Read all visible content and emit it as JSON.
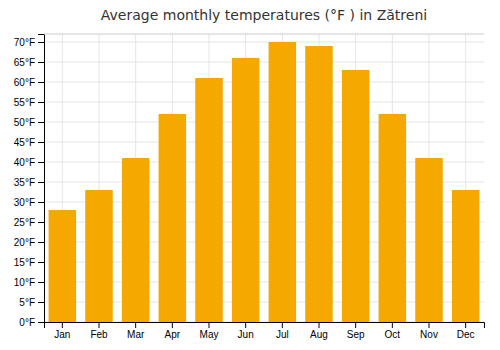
{
  "chart_data": {
    "type": "bar",
    "title": "Average monthly temperatures (°F ) in Zătreni",
    "categories": [
      "Jan",
      "Feb",
      "Mar",
      "Apr",
      "May",
      "Jun",
      "Jul",
      "Aug",
      "Sep",
      "Oct",
      "Nov",
      "Dec"
    ],
    "values": [
      28,
      33,
      41,
      52,
      61,
      66,
      70,
      69,
      63,
      52,
      41,
      33
    ],
    "color": "#F5A800",
    "ylim": [
      0,
      72
    ],
    "yticks": [
      {
        "value": 0,
        "label": "0°F"
      },
      {
        "value": 5,
        "label": "5°F"
      },
      {
        "value": 10,
        "label": "10°F"
      },
      {
        "value": 15,
        "label": "15°F"
      },
      {
        "value": 20,
        "label": "20°F"
      },
      {
        "value": 25,
        "label": "25°F"
      },
      {
        "value": 30,
        "label": "30°F"
      },
      {
        "value": 35,
        "label": "35°F"
      },
      {
        "value": 40,
        "label": "40°F"
      },
      {
        "value": 45,
        "label": "45°F"
      },
      {
        "value": 50,
        "label": "50°F"
      },
      {
        "value": 55,
        "label": "55°F"
      },
      {
        "value": 60,
        "label": "60°F"
      },
      {
        "value": 65,
        "label": "65°F"
      },
      {
        "value": 70,
        "label": "70°F"
      }
    ],
    "grid": true
  }
}
